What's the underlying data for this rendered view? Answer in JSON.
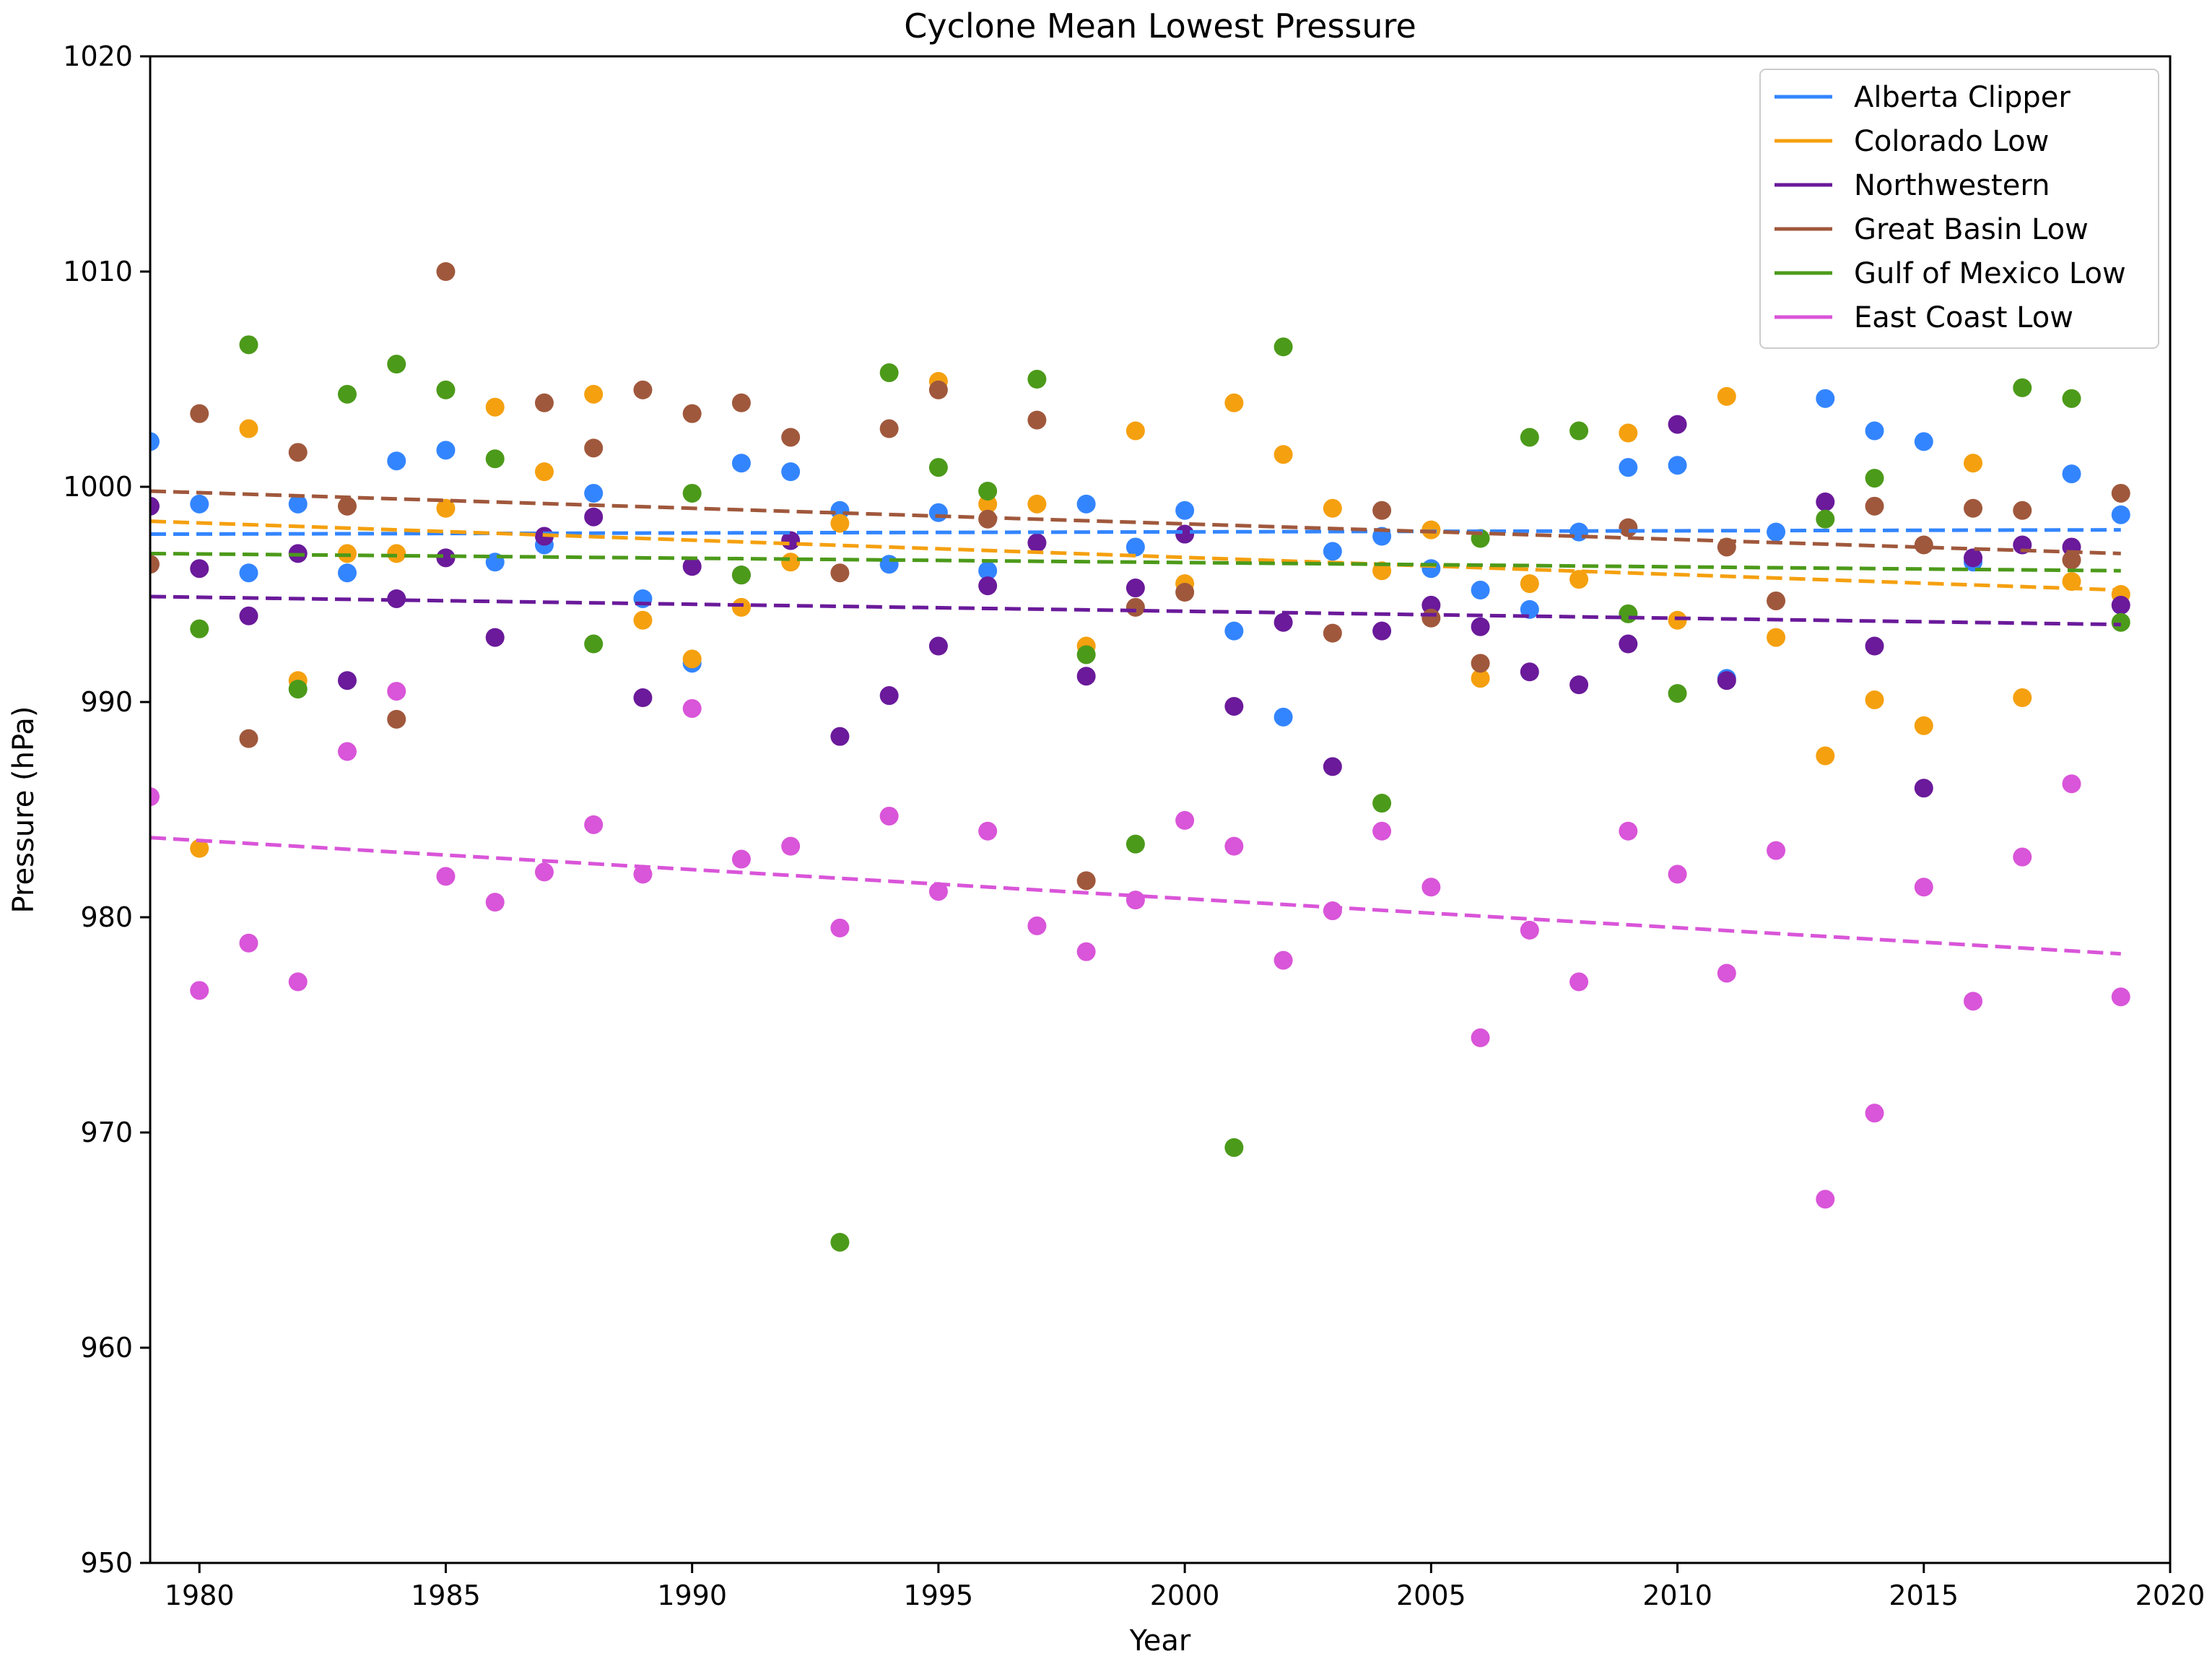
{
  "chart_data": {
    "type": "scatter",
    "title": "Cyclone Mean Lowest Pressure",
    "xlabel": "Year",
    "ylabel": "Pressure (hPa)",
    "xlim": [
      1979,
      2020
    ],
    "ylim": [
      950,
      1020
    ],
    "xticks": [
      1980,
      1985,
      1990,
      1995,
      2000,
      2005,
      2010,
      2015,
      2020
    ],
    "yticks": [
      950,
      960,
      970,
      980,
      990,
      1000,
      1010,
      1020
    ],
    "grid": false,
    "legend_position": "top-right",
    "x": [
      1979,
      1980,
      1981,
      1982,
      1983,
      1984,
      1985,
      1986,
      1987,
      1988,
      1989,
      1990,
      1991,
      1992,
      1993,
      1994,
      1995,
      1996,
      1997,
      1998,
      1999,
      2000,
      2001,
      2002,
      2003,
      2004,
      2005,
      2006,
      2007,
      2008,
      2009,
      2010,
      2011,
      2012,
      2013,
      2014,
      2015,
      2016,
      2017,
      2018,
      2019
    ],
    "series": [
      {
        "name": "Alberta Clipper",
        "color": "#3385ff",
        "values": [
          1002.1,
          999.2,
          996.0,
          999.2,
          996.0,
          1001.2,
          1001.7,
          996.5,
          997.3,
          999.7,
          994.8,
          991.8,
          1001.1,
          1000.7,
          998.9,
          996.4,
          998.8,
          996.1,
          null,
          999.2,
          997.2,
          998.9,
          993.3,
          989.3,
          997.0,
          997.7,
          996.2,
          995.2,
          994.3,
          997.9,
          1000.9,
          1001.0,
          991.1,
          997.9,
          1004.1,
          1002.6,
          1002.1,
          996.5,
          null,
          1000.6,
          998.7
        ],
        "trend": [
          997.8,
          998.0
        ]
      },
      {
        "name": "Colorado Low",
        "color": "#f5a00f",
        "values": [
          null,
          983.2,
          1002.7,
          991.0,
          996.9,
          996.9,
          999.0,
          1003.7,
          1000.7,
          1004.3,
          993.8,
          992.0,
          994.4,
          996.5,
          998.3,
          null,
          1004.9,
          999.2,
          999.2,
          992.6,
          1002.6,
          995.5,
          1003.9,
          1001.5,
          999.0,
          996.1,
          998.0,
          991.1,
          995.5,
          995.7,
          1002.5,
          993.8,
          1004.2,
          993.0,
          987.5,
          990.1,
          988.9,
          1001.1,
          990.2,
          995.6,
          995.0
        ],
        "trend": [
          998.4,
          995.2
        ]
      },
      {
        "name": "Northwestern",
        "color": "#6a1a9a",
        "values": [
          999.1,
          996.2,
          994.0,
          996.9,
          991.0,
          994.8,
          996.7,
          993.0,
          997.7,
          998.6,
          990.2,
          996.3,
          995.9,
          997.5,
          988.4,
          990.3,
          992.6,
          995.4,
          997.4,
          991.2,
          995.3,
          997.8,
          989.8,
          993.7,
          987.0,
          993.3,
          994.5,
          993.5,
          991.4,
          990.8,
          992.7,
          1002.9,
          991.0,
          null,
          999.3,
          992.6,
          986.0,
          996.7,
          997.3,
          997.2,
          994.5
        ],
        "trend": [
          994.9,
          993.6
        ]
      },
      {
        "name": "Great Basin Low",
        "color": "#a0583c",
        "values": [
          996.4,
          1003.4,
          988.3,
          1001.6,
          999.1,
          989.2,
          1010.0,
          null,
          1003.9,
          1001.8,
          1004.5,
          1003.4,
          1003.9,
          1002.3,
          996.0,
          1002.7,
          1004.5,
          998.5,
          1003.1,
          981.7,
          994.4,
          995.1,
          null,
          null,
          993.2,
          998.9,
          993.9,
          991.8,
          null,
          null,
          998.1,
          null,
          997.2,
          994.7,
          null,
          999.1,
          997.3,
          999.0,
          998.9,
          996.6,
          999.7
        ],
        "trend": [
          999.8,
          996.9
        ]
      },
      {
        "name": "Gulf of Mexico Low",
        "color": "#4c9a1a",
        "values": [
          null,
          993.4,
          1006.6,
          990.6,
          1004.3,
          1005.7,
          1004.5,
          1001.3,
          null,
          992.7,
          null,
          999.7,
          995.9,
          null,
          964.9,
          1005.3,
          1000.9,
          999.8,
          1005.0,
          992.2,
          983.4,
          null,
          969.3,
          1006.5,
          null,
          985.3,
          null,
          997.6,
          1002.3,
          1002.6,
          994.1,
          990.4,
          null,
          null,
          998.5,
          1000.4,
          null,
          null,
          1004.6,
          1004.1,
          993.7
        ],
        "trend": [
          996.9,
          996.1
        ]
      },
      {
        "name": "East Coast Low",
        "color": "#d955d9",
        "values": [
          985.6,
          976.6,
          978.8,
          977.0,
          987.7,
          990.5,
          981.9,
          980.7,
          982.1,
          984.3,
          982.0,
          989.7,
          982.7,
          983.3,
          979.5,
          984.7,
          981.2,
          984.0,
          979.6,
          978.4,
          980.8,
          984.5,
          983.3,
          978.0,
          980.3,
          984.0,
          981.4,
          974.4,
          979.4,
          977.0,
          984.0,
          982.0,
          977.4,
          983.1,
          966.9,
          970.9,
          981.4,
          976.1,
          982.8,
          986.2,
          976.3
        ],
        "trend": [
          983.7,
          978.3
        ]
      }
    ]
  }
}
